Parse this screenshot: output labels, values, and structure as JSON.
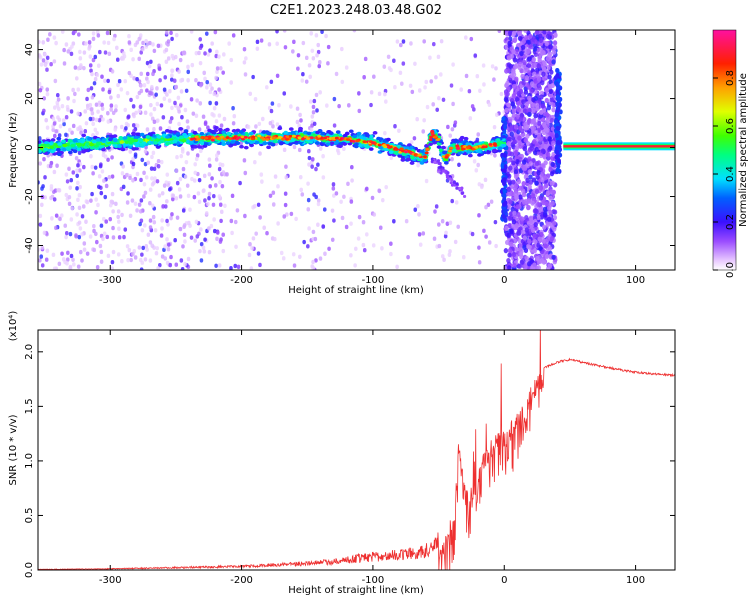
{
  "title": "C2E1.2023.248.03.48.G02",
  "chart_data": [
    {
      "type": "heatmap",
      "xlabel": "Height of straight line (km)",
      "ylabel": "Frequency (Hz)",
      "xlim": [
        -355,
        130
      ],
      "ylim": [
        -50,
        48
      ],
      "xticks": [
        -300,
        -200,
        -100,
        0,
        100
      ],
      "yticks": [
        -40,
        -20,
        0,
        20,
        40
      ],
      "xtick_labels": [
        "-300",
        "-200",
        "-100",
        "0",
        "100"
      ],
      "ytick_labels": [
        "-40",
        "-20",
        "0",
        "20",
        "40"
      ],
      "colorbar": {
        "label": "Normalized spectral amplitude",
        "range": [
          0,
          1
        ],
        "ticks": [
          0.0,
          0.2,
          0.4,
          0.6,
          0.8
        ],
        "tick_labels": [
          "0.0",
          "0.2",
          "0.4",
          "0.6",
          "0.8"
        ]
      },
      "ridge": {
        "description_points_x": [
          -355,
          -330,
          -300,
          -270,
          -240,
          -210,
          -180,
          -150,
          -120,
          -100,
          -80,
          -60,
          -55,
          -50,
          -45,
          -40,
          -30,
          -20,
          -10,
          0
        ],
        "description_points_y": [
          0,
          1,
          2,
          3,
          3.5,
          4,
          4,
          4,
          3.5,
          2,
          -1,
          -4,
          6,
          3,
          -5,
          0,
          0,
          0,
          1,
          2
        ]
      },
      "occultation_start_km": 45,
      "tone_frequency_after_km": 0.5
    },
    {
      "type": "line",
      "xlabel": "Height of straight line (km)",
      "ylabel": "SNR (10 * v/v)",
      "scale_label": "(x10⁴)",
      "xlim": [
        -355,
        130
      ],
      "ylim": [
        0,
        2.2
      ],
      "xticks": [
        -300,
        -200,
        -100,
        0,
        100
      ],
      "yticks": [
        0.0,
        0.5,
        1.0,
        1.5,
        2.0
      ],
      "xtick_labels": [
        "-300",
        "-200",
        "-100",
        "0",
        "100"
      ],
      "ytick_labels": [
        "0.0",
        "0.5",
        "1.0",
        "1.5",
        "2.0"
      ],
      "color": "#ee3030",
      "envelope": {
        "x": [
          -355,
          -300,
          -250,
          -200,
          -160,
          -130,
          -110,
          -90,
          -70,
          -55,
          -45,
          -38,
          -35,
          -30,
          -25,
          -20,
          -15,
          -10,
          -5,
          0,
          5,
          10,
          15,
          20,
          25,
          30,
          40,
          50,
          60,
          80,
          100,
          130
        ],
        "y": [
          0.005,
          0.01,
          0.02,
          0.03,
          0.05,
          0.07,
          0.1,
          0.12,
          0.14,
          0.18,
          0.3,
          0.5,
          1.2,
          0.8,
          0.7,
          0.9,
          1.1,
          1.2,
          1.3,
          1.3,
          1.3,
          1.45,
          1.55,
          1.7,
          1.78,
          1.85,
          1.9,
          1.93,
          1.9,
          1.85,
          1.81,
          1.78
        ]
      }
    }
  ]
}
